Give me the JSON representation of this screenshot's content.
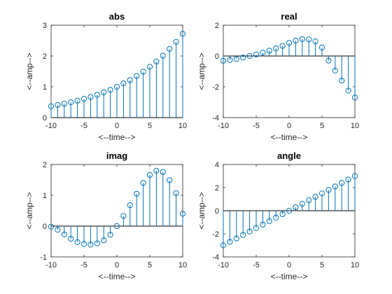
{
  "figure": {
    "background": "#ffffff",
    "axis_color": "#262626",
    "stem_color": "#0072BD"
  },
  "chart_data": [
    {
      "type": "stem",
      "title": "abs",
      "xlabel": "<--time-->",
      "ylabel": "<--amp-->",
      "xlim": [
        -10,
        10
      ],
      "ylim": [
        0,
        3
      ],
      "xticks": [
        -10,
        -5,
        0,
        5,
        10
      ],
      "yticks": [
        0,
        1,
        2,
        3
      ],
      "x": [
        -10,
        -9,
        -8,
        -7,
        -6,
        -5,
        -4,
        -3,
        -2,
        -1,
        0,
        1,
        2,
        3,
        4,
        5,
        6,
        7,
        8,
        9,
        10
      ],
      "values": [
        0.37,
        0.41,
        0.45,
        0.5,
        0.55,
        0.61,
        0.67,
        0.74,
        0.82,
        0.9,
        1.0,
        1.11,
        1.22,
        1.35,
        1.49,
        1.65,
        1.82,
        2.01,
        2.23,
        2.46,
        2.72
      ]
    },
    {
      "type": "stem",
      "title": "real",
      "xlabel": "<--time-->",
      "ylabel": "<--amp-->",
      "xlim": [
        -10,
        10
      ],
      "ylim": [
        -4,
        2
      ],
      "xticks": [
        -10,
        -5,
        0,
        5,
        10
      ],
      "yticks": [
        -4,
        -2,
        0,
        2
      ],
      "x": [
        -10,
        -9,
        -8,
        -7,
        -6,
        -5,
        -4,
        -3,
        -2,
        -1,
        0,
        1,
        2,
        3,
        4,
        5,
        6,
        7,
        8,
        9,
        10
      ],
      "values": [
        -0.31,
        -0.26,
        -0.19,
        -0.1,
        0.0,
        0.1,
        0.22,
        0.35,
        0.5,
        0.66,
        0.85,
        1.0,
        1.1,
        1.08,
        0.95,
        0.55,
        -0.3,
        -0.95,
        -1.6,
        -2.25,
        -2.7
      ]
    },
    {
      "type": "stem",
      "title": "imag",
      "xlabel": "<--time-->",
      "ylabel": "<--amp-->",
      "xlim": [
        -10,
        10
      ],
      "ylim": [
        -1,
        2
      ],
      "xticks": [
        -10,
        -5,
        0,
        5,
        10
      ],
      "yticks": [
        -1,
        0,
        1,
        2
      ],
      "x": [
        -10,
        -9,
        -8,
        -7,
        -6,
        -5,
        -4,
        -3,
        -2,
        -1,
        0,
        1,
        2,
        3,
        4,
        5,
        6,
        7,
        8,
        9,
        10
      ],
      "values": [
        -0.02,
        -0.12,
        -0.27,
        -0.41,
        -0.52,
        -0.58,
        -0.6,
        -0.56,
        -0.46,
        -0.28,
        0.0,
        0.33,
        0.68,
        1.05,
        1.4,
        1.66,
        1.8,
        1.76,
        1.49,
        1.07,
        0.4
      ]
    },
    {
      "type": "stem",
      "title": "angle",
      "xlabel": "<--time-->",
      "ylabel": "<--amp-->",
      "xlim": [
        -10,
        10
      ],
      "ylim": [
        -4,
        4
      ],
      "xticks": [
        -10,
        -5,
        0,
        5,
        10
      ],
      "yticks": [
        -4,
        -2,
        0,
        2,
        4
      ],
      "x": [
        -10,
        -9,
        -8,
        -7,
        -6,
        -5,
        -4,
        -3,
        -2,
        -1,
        0,
        1,
        2,
        3,
        4,
        5,
        6,
        7,
        8,
        9,
        10
      ],
      "values": [
        -3.0,
        -2.7,
        -2.4,
        -2.1,
        -1.8,
        -1.5,
        -1.2,
        -0.9,
        -0.6,
        -0.3,
        0.0,
        0.3,
        0.6,
        0.9,
        1.2,
        1.5,
        1.8,
        2.1,
        2.4,
        2.7,
        3.0
      ]
    }
  ]
}
